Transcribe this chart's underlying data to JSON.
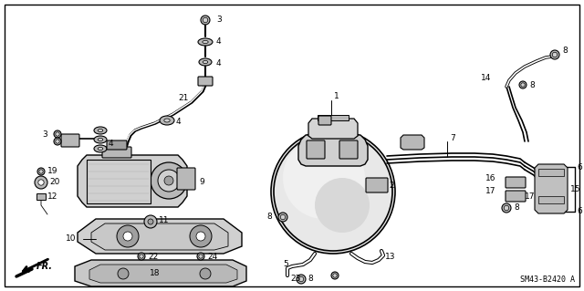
{
  "diagram_code": "SM43-B2420 A",
  "background_color": "#ffffff",
  "border_color": "#000000",
  "line_color": "#000000",
  "figsize": [
    6.4,
    3.19
  ],
  "dpi": 100,
  "text_color": "#000000",
  "font_size_labels": 6.5,
  "font_size_code": 6,
  "gray_fill": "#d0d0d0",
  "gray_mid": "#b8b8b8",
  "gray_dark": "#a0a0a0",
  "white_fill": "#ffffff"
}
